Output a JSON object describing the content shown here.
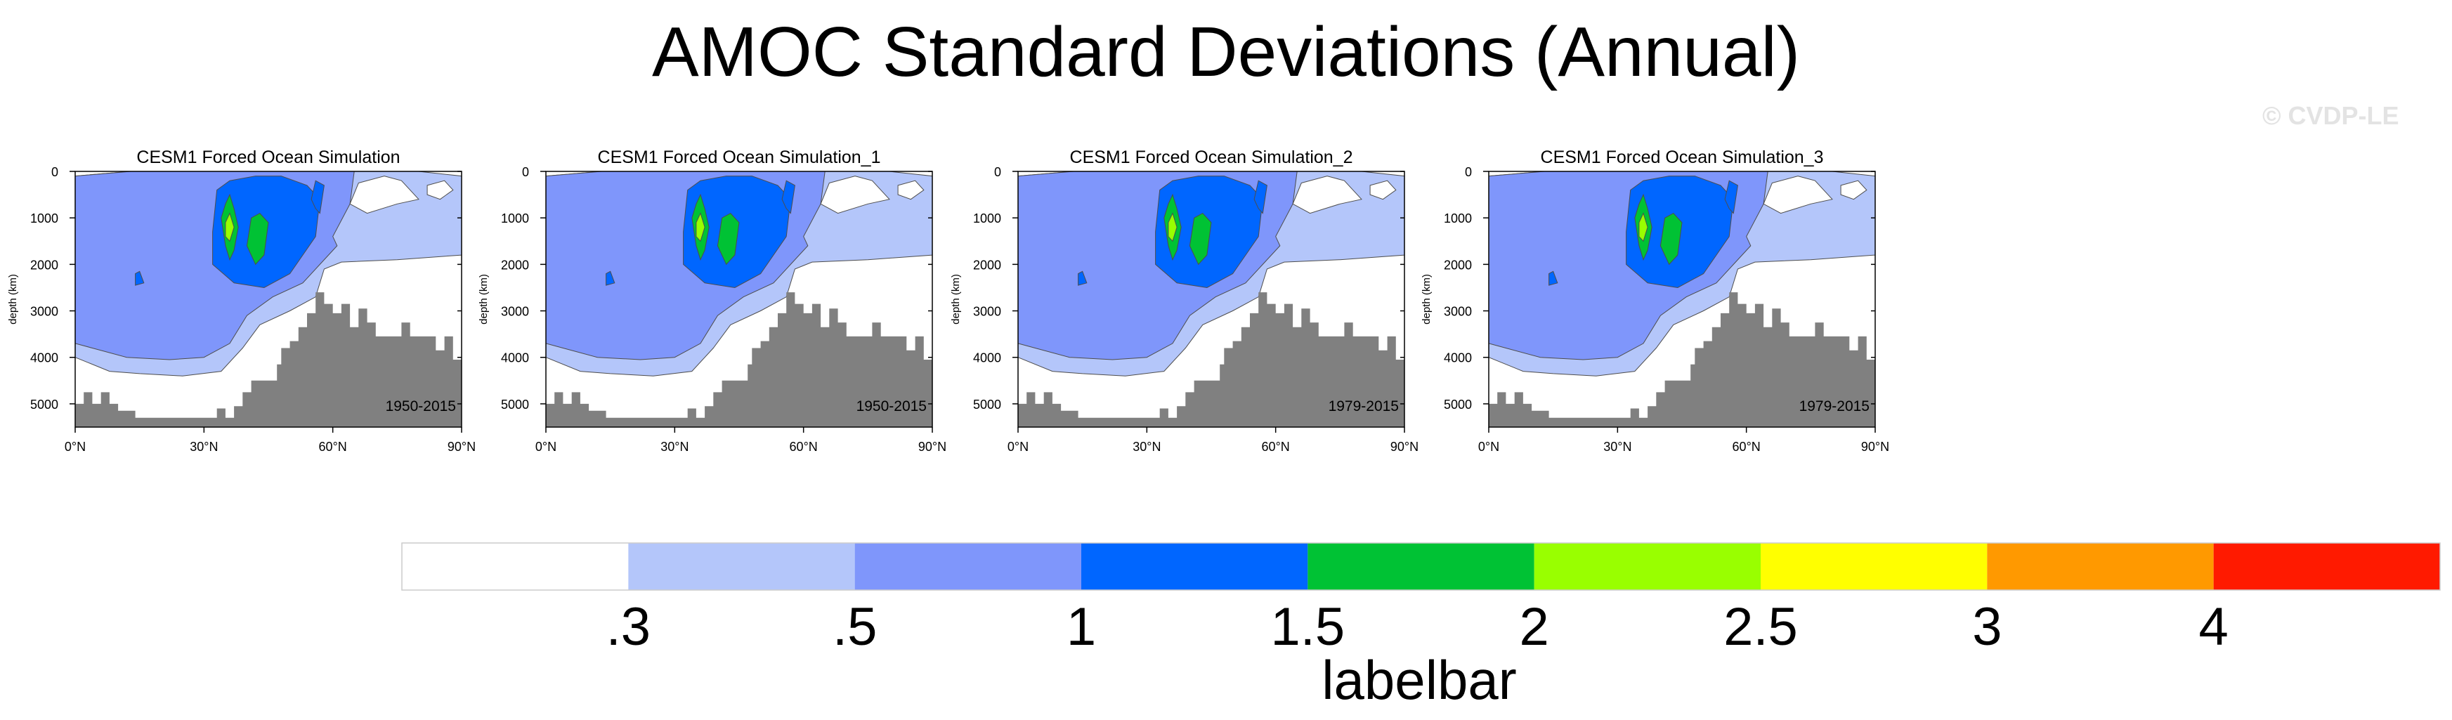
{
  "title": "AMOC Standard Deviations (Annual)",
  "watermark": "© CVDP-LE",
  "chart_data": {
    "type": "contour",
    "panels": [
      {
        "title": "CESM1 Forced Ocean Simulation",
        "period": "1950-2015"
      },
      {
        "title": "CESM1 Forced Ocean Simulation_1",
        "period": "1950-2015"
      },
      {
        "title": "CESM1 Forced Ocean Simulation_2",
        "period": "1979-2015"
      },
      {
        "title": "CESM1 Forced Ocean Simulation_3",
        "period": "1979-2015"
      }
    ],
    "xlabel": "",
    "ylabel": "depth (km)",
    "x_ticks": [
      "0°N",
      "30°N",
      "60°N",
      "90°N"
    ],
    "y_ticks": [
      "0",
      "1000",
      "2000",
      "3000",
      "4000",
      "5000"
    ],
    "xlim": [
      0,
      90
    ],
    "ylim": [
      0,
      5500
    ],
    "contour_levels": [
      0.3,
      0.5,
      1,
      1.5,
      2,
      2.5,
      3,
      4
    ],
    "labelbar": {
      "title": "labelbar",
      "tick_labels": [
        ".3",
        ".5",
        "1",
        "1.5",
        "2",
        "2.5",
        "3",
        "4"
      ],
      "colors": [
        "#ffffff",
        "#b4c6fa",
        "#7f96fb",
        "#0066ff",
        "#00c234",
        "#99ff00",
        "#ffff00",
        "#ff9900",
        "#ff1a00"
      ]
    },
    "land_color": "#808080"
  }
}
